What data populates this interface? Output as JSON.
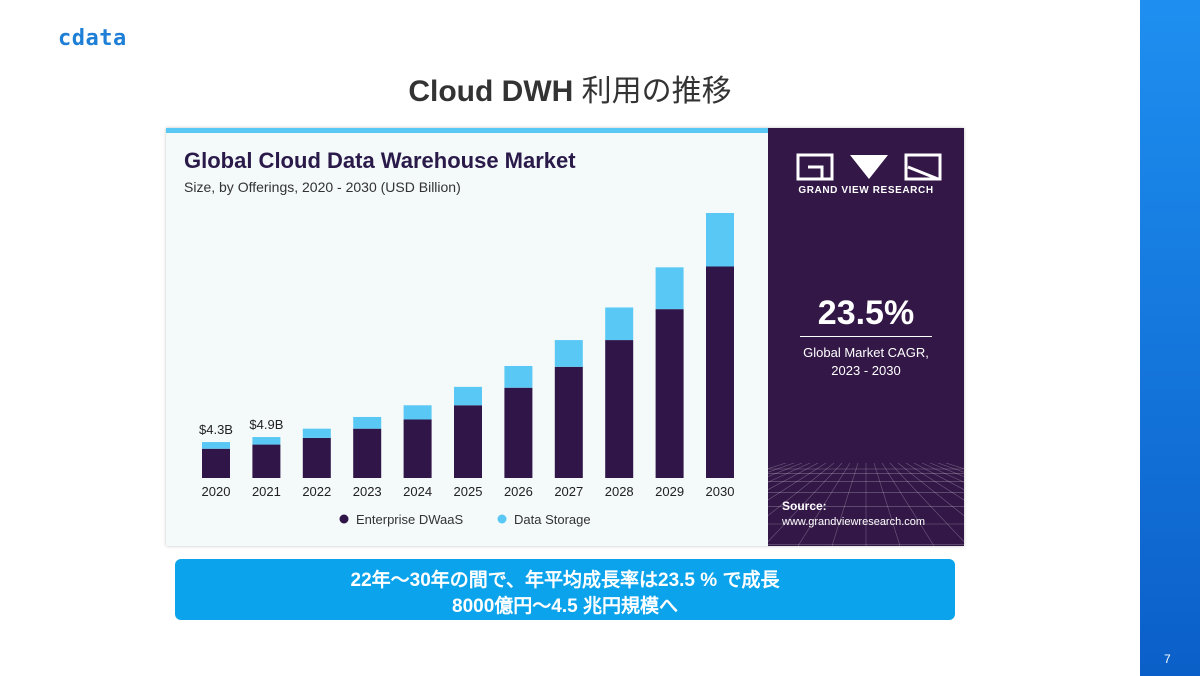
{
  "brand": {
    "logo_text": "cdata",
    "page_number": "7"
  },
  "slide": {
    "title_en": "Cloud DWH",
    "title_ja": " 利用の推移"
  },
  "colors": {
    "accent": "#1e8ff0",
    "enterprise": "#2f1548",
    "storage": "#5ac8f5",
    "panel": "#331747",
    "summary": "#0ba4ec"
  },
  "chart_data": {
    "type": "bar",
    "stacked": true,
    "title": "Global Cloud Data Warehouse Market",
    "subtitle": "Size, by Offerings, 2020 - 2030 (USD Billion)",
    "categories": [
      "2020",
      "2021",
      "2022",
      "2023",
      "2024",
      "2025",
      "2026",
      "2027",
      "2028",
      "2029",
      "2030"
    ],
    "series": [
      {
        "name": "Enterprise DWaaS",
        "color": "#2f1548",
        "values": [
          3.5,
          4.0,
          4.8,
          5.9,
          7.0,
          8.7,
          10.8,
          13.3,
          16.5,
          20.2,
          25.3
        ]
      },
      {
        "name": "Data Storage",
        "color": "#5ac8f5",
        "values": [
          0.8,
          0.9,
          1.1,
          1.4,
          1.7,
          2.2,
          2.6,
          3.2,
          3.9,
          5.0,
          6.4
        ]
      }
    ],
    "data_labels": [
      {
        "category": "2020",
        "text": "$4.3B"
      },
      {
        "category": "2021",
        "text": "$4.9B"
      }
    ],
    "ylim": [
      0,
      31.7
    ],
    "legend_position": "bottom",
    "grid": false
  },
  "panel": {
    "brand_name": "GRAND VIEW RESEARCH",
    "cagr_value": "23.5%",
    "cagr_label_1": "Global Market CAGR,",
    "cagr_label_2": "2023 - 2030",
    "source_label": "Source:",
    "source_url": "www.grandviewresearch.com"
  },
  "summary": {
    "line1": "22年～30年の間で、年平均成長率は23.5 % で成長",
    "line2": "8000億円～4.5 兆円規模へ"
  }
}
